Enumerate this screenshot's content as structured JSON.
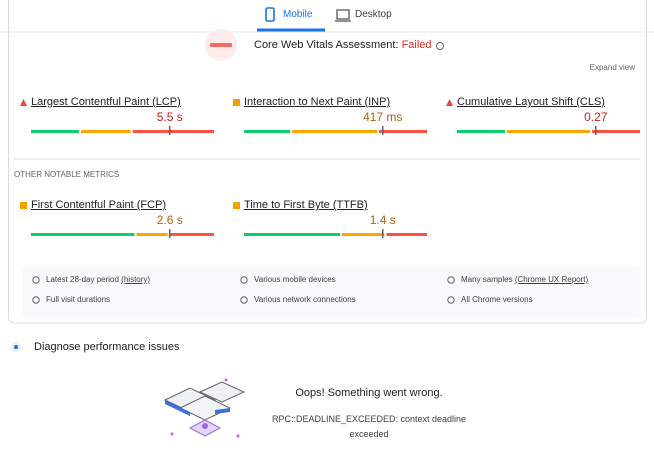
{
  "tabs": [
    {
      "label": "Mobile",
      "active": true
    },
    {
      "label": "Desktop",
      "active": false
    }
  ],
  "assessment": {
    "label": "Core Web Vitals Assessment:",
    "status": "Failed"
  },
  "expand": "Expand view",
  "core_metrics": [
    {
      "name": "Largest Contentful Paint (LCP)",
      "value": "5.5 s",
      "rating": "poor",
      "distribution": [
        27,
        28,
        45
      ]
    },
    {
      "name": "Interaction to Next Paint (INP)",
      "value": "417 ms",
      "rating": "average",
      "distribution": [
        26,
        47,
        27
      ]
    },
    {
      "name": "Cumulative Layout Shift (CLS)",
      "value": "0.27",
      "rating": "poor",
      "distribution": [
        27,
        46,
        27
      ]
    }
  ],
  "other_heading": "OTHER NOTABLE METRICS",
  "other_metrics": [
    {
      "name": "First Contentful Paint (FCP)",
      "value": "2.6 s",
      "rating": "average",
      "distribution": [
        57,
        18,
        25
      ]
    },
    {
      "name": "Time to First Byte (TTFB)",
      "value": "1.4 s",
      "rating": "average",
      "distribution": [
        53,
        24,
        23
      ]
    }
  ],
  "footer": [
    {
      "text": "Latest 28-day period",
      "link": "(history)"
    },
    {
      "text": "Various mobile devices"
    },
    {
      "text": "Many samples",
      "link": "(Chrome UX Report)"
    },
    {
      "text": "Full visit durations"
    },
    {
      "text": "Various network connections"
    },
    {
      "text": "All Chrome versions"
    }
  ],
  "diagnose": "Diagnose performance issues",
  "error": {
    "title": "Oops! Something went wrong.",
    "message": "RPC::DEADLINE_EXCEEDED: context deadline exceeded"
  }
}
